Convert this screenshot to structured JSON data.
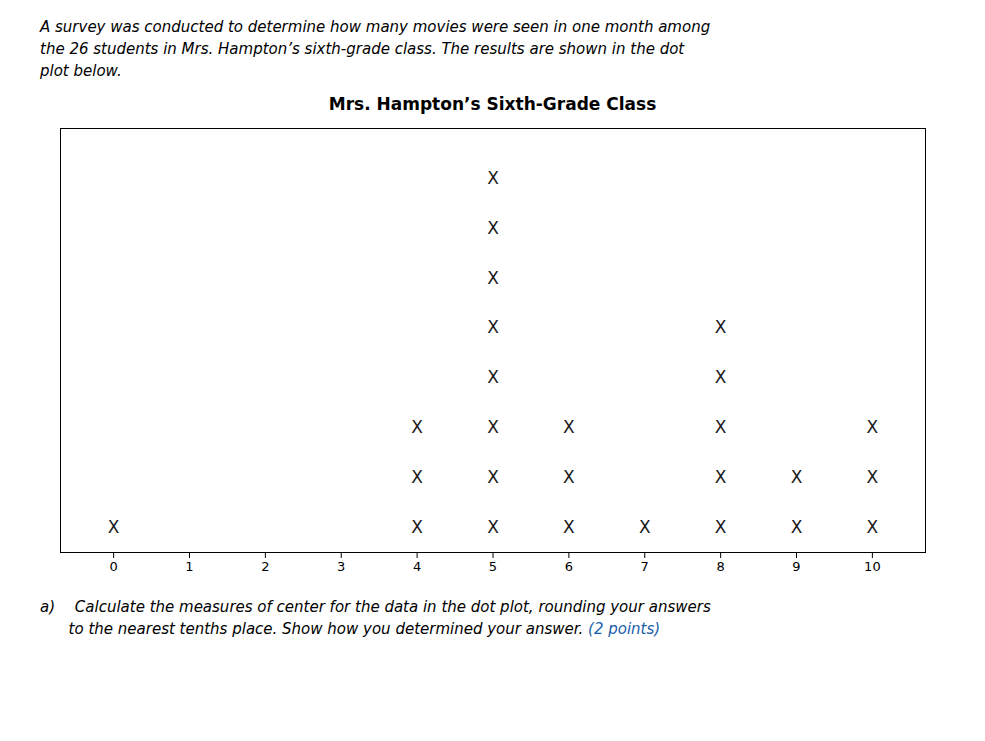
{
  "chart_data": {
    "type": "dot plot",
    "title": "Mrs. Hampton’s Sixth-Grade Class",
    "subtitle": [
      "A survey was conducted to determine how many movies were seen in one month among",
      "the 26 students in Mrs. Hampton’s sixth-grade class. The results are shown in the dot",
      "plot below."
    ],
    "caption": [
      [
        {
          "text": "a)  Calculate the measures of center for the data in the dot plot, rounding your answers"
        }
      ],
      [
        {
          "text": "      to the nearest tenths place. Show how you determined your answer."
        },
        {
          "text": " (2 points)",
          "color": "#1a5faa"
        }
      ]
    ],
    "x": [
      0,
      1,
      2,
      3,
      4,
      5,
      6,
      7,
      8,
      9,
      10
    ],
    "values": [
      1,
      0,
      0,
      0,
      3,
      8,
      3,
      1,
      5,
      2,
      3
    ],
    "color": "#1a1a1a",
    "marker": "X",
    "xlim": [
      -0.7,
      10.7
    ],
    "xticks": [
      0,
      1,
      2,
      3,
      4,
      5,
      6,
      7,
      8,
      9,
      10
    ],
    "ylim": [
      0,
      8.5
    ],
    "grid": false,
    "tick_labels": "x"
  }
}
